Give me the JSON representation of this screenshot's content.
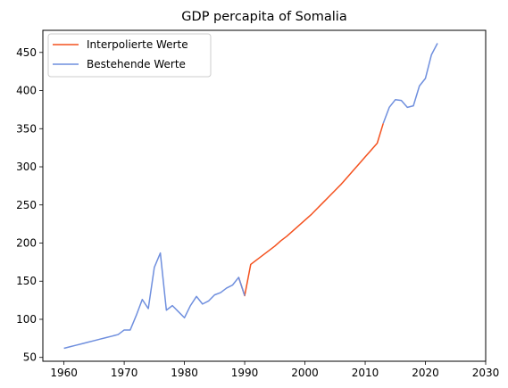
{
  "chart_data": {
    "type": "line",
    "title": "GDP percapita of Somalia",
    "xlabel": "",
    "ylabel": "",
    "xlim": [
      1956.5,
      2030
    ],
    "ylim": [
      45,
      479
    ],
    "xticks": [
      1960,
      1970,
      1980,
      1990,
      2000,
      2010,
      2020,
      2030
    ],
    "yticks": [
      50,
      100,
      150,
      200,
      250,
      300,
      350,
      400,
      450
    ],
    "grid": false,
    "legend_position": "top-left",
    "series": [
      {
        "name": "Interpolierte Werte",
        "color": "#f4511e",
        "x": [
          1989,
          1990,
          1991,
          1992,
          1993,
          1994,
          1995,
          1996,
          1997,
          1998,
          1999,
          2000,
          2001,
          2002,
          2003,
          2004,
          2005,
          2006,
          2007,
          2008,
          2009,
          2010,
          2011,
          2012,
          2013
        ],
        "y": [
          155,
          131,
          172,
          178,
          184,
          190,
          196,
          203,
          209,
          216,
          223,
          230,
          237,
          245,
          253,
          261,
          269,
          277,
          286,
          295,
          304,
          313,
          322,
          331,
          357
        ]
      },
      {
        "name": "Bestehende Werte",
        "color": "#6f8fde",
        "x": [
          1960,
          1961,
          1962,
          1963,
          1964,
          1965,
          1966,
          1967,
          1968,
          1969,
          1970,
          1971,
          1972,
          1973,
          1974,
          1975,
          1976,
          1977,
          1978,
          1979,
          1980,
          1981,
          1982,
          1983,
          1984,
          1985,
          1986,
          1987,
          1988,
          1989,
          1990
        ],
        "y": [
          62,
          64,
          66,
          68,
          70,
          72,
          74,
          76,
          78,
          80,
          86,
          86,
          105,
          126,
          114,
          168,
          187,
          112,
          118,
          110,
          102,
          118,
          130,
          120,
          124,
          132,
          135,
          141,
          145,
          155,
          131
        ],
        "x2": [
          2013,
          2014,
          2015,
          2016,
          2017,
          2018,
          2019,
          2020,
          2021,
          2022
        ],
        "y2": [
          357,
          378,
          388,
          387,
          378,
          380,
          406,
          416,
          447,
          462
        ]
      }
    ]
  }
}
